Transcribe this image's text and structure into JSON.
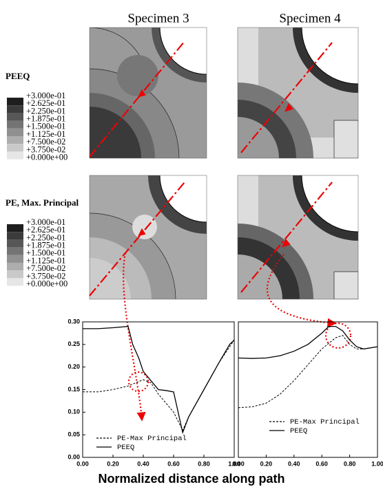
{
  "figure": {
    "columns": [
      "Specimen 3",
      "Specimen 4"
    ],
    "contour_legends": [
      {
        "title": "PEEQ",
        "levels": [
          "+3.000e-01",
          "+2.625e-01",
          "+2.250e-01",
          "+1.875e-01",
          "+1.500e-01",
          "+1.125e-01",
          "+7.500e-02",
          "+3.750e-02",
          "+0.000e+00"
        ]
      },
      {
        "title": "PE, Max. Principal",
        "levels": [
          "+3.000e-01",
          "+2.625e-01",
          "+2.250e-01",
          "+1.875e-01",
          "+1.500e-01",
          "+1.125e-01",
          "+7.500e-02",
          "+3.750e-02",
          "+0.000e+00"
        ]
      }
    ],
    "shared_xlabel": "Normalized distance along path"
  },
  "chart_data": [
    {
      "type": "line",
      "legend_position": "lower left",
      "xlim": [
        0,
        1
      ],
      "ylim": [
        0,
        0.3
      ],
      "xticks": [
        {
          "value": 0,
          "label": "0.00"
        },
        {
          "value": 0.2,
          "label": "0.20"
        },
        {
          "value": 0.4,
          "label": "0.40"
        },
        {
          "value": 0.6,
          "label": "0.60"
        },
        {
          "value": 0.8,
          "label": "0.80"
        },
        {
          "value": 1,
          "label": "1.00"
        }
      ],
      "yticks": [
        {
          "value": 0,
          "label": "0.00"
        },
        {
          "value": 0.05,
          "label": "0.05"
        },
        {
          "value": 0.1,
          "label": "0.10"
        },
        {
          "value": 0.15,
          "label": "0.15"
        },
        {
          "value": 0.2,
          "label": "0.20"
        },
        {
          "value": 0.25,
          "label": "0.25"
        },
        {
          "value": 0.3,
          "label": "0.30"
        }
      ],
      "series": [
        {
          "name": "PE-Max Principal",
          "color": "#000000",
          "dash": "dashed",
          "x": [
            0,
            0.1,
            0.2,
            0.3,
            0.35,
            0.4,
            0.45,
            0.5,
            0.6,
            0.66,
            0.7,
            0.8,
            0.9,
            1.0
          ],
          "values": [
            0.145,
            0.145,
            0.15,
            0.158,
            0.165,
            0.172,
            0.165,
            0.14,
            0.1,
            0.06,
            0.09,
            0.15,
            0.21,
            0.26
          ]
        },
        {
          "name": "PEEQ",
          "color": "#000000",
          "dash": "solid",
          "x": [
            0,
            0.1,
            0.2,
            0.3,
            0.33,
            0.37,
            0.4,
            0.45,
            0.5,
            0.55,
            0.6,
            0.66,
            0.7,
            0.8,
            0.9,
            0.97,
            1.0
          ],
          "values": [
            0.285,
            0.285,
            0.287,
            0.29,
            0.25,
            0.22,
            0.19,
            0.17,
            0.15,
            0.148,
            0.145,
            0.055,
            0.09,
            0.15,
            0.21,
            0.25,
            0.26
          ]
        }
      ]
    },
    {
      "type": "line",
      "legend_position": "center right",
      "xlim": [
        0,
        1
      ],
      "ylim": [
        0,
        0.3
      ],
      "xticks": [
        {
          "value": 0,
          "label": "0.00"
        },
        {
          "value": 0.2,
          "label": "0.20"
        },
        {
          "value": 0.4,
          "label": "0.40"
        },
        {
          "value": 0.6,
          "label": "0.60"
        },
        {
          "value": 0.8,
          "label": "0.80"
        },
        {
          "value": 1,
          "label": "1.00"
        }
      ],
      "series": [
        {
          "name": "PE-Max Principal",
          "color": "#000000",
          "dash": "dashed",
          "x": [
            0,
            0.1,
            0.2,
            0.3,
            0.4,
            0.5,
            0.6,
            0.7,
            0.75,
            0.8,
            0.85,
            0.9,
            1.0
          ],
          "values": [
            0.11,
            0.112,
            0.12,
            0.14,
            0.17,
            0.205,
            0.24,
            0.265,
            0.27,
            0.25,
            0.24,
            0.24,
            0.245
          ]
        },
        {
          "name": "PEEQ",
          "color": "#000000",
          "dash": "solid",
          "x": [
            0,
            0.1,
            0.2,
            0.3,
            0.4,
            0.5,
            0.6,
            0.65,
            0.7,
            0.75,
            0.8,
            0.85,
            0.9,
            1.0
          ],
          "values": [
            0.22,
            0.219,
            0.22,
            0.225,
            0.235,
            0.25,
            0.275,
            0.29,
            0.29,
            0.28,
            0.26,
            0.245,
            0.24,
            0.245
          ]
        }
      ]
    }
  ]
}
